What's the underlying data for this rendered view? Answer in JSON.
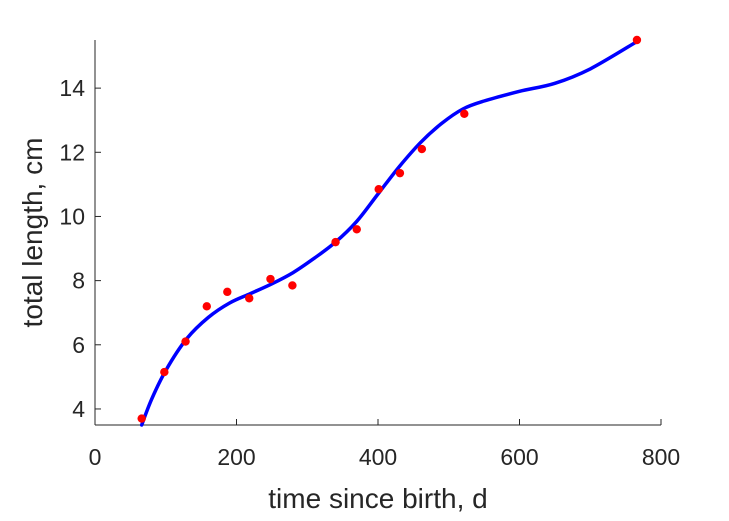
{
  "chart_data": {
    "type": "scatter",
    "xlabel": "time since birth, d",
    "ylabel": "total length, cm",
    "xlim": [
      0,
      800
    ],
    "ylim": [
      3.5,
      15.5
    ],
    "xticks": [
      0,
      200,
      400,
      600,
      800
    ],
    "yticks": [
      4,
      6,
      8,
      10,
      12,
      14
    ],
    "grid": false,
    "legend": "none",
    "series": [
      {
        "kind": "points",
        "color": "#ff0000",
        "x": [
          66,
          98,
          128,
          158,
          187,
          218,
          248,
          279,
          340,
          370,
          401,
          431,
          462,
          522,
          766
        ],
        "y": [
          3.7,
          5.15,
          6.1,
          7.2,
          7.65,
          7.45,
          8.05,
          7.85,
          9.2,
          9.6,
          10.85,
          11.35,
          12.1,
          13.2,
          15.5
        ]
      },
      {
        "kind": "line",
        "color": "#0000ff",
        "x": [
          66,
          80,
          100,
          130,
          160,
          190,
          220,
          250,
          280,
          310,
          340,
          370,
          400,
          430,
          460,
          490,
          520,
          550,
          600,
          650,
          700,
          766
        ],
        "y": [
          3.5,
          4.3,
          5.2,
          6.2,
          6.85,
          7.3,
          7.6,
          7.9,
          8.25,
          8.7,
          9.2,
          9.85,
          10.7,
          11.55,
          12.3,
          12.9,
          13.35,
          13.6,
          13.9,
          14.15,
          14.6,
          15.45
        ]
      }
    ]
  }
}
